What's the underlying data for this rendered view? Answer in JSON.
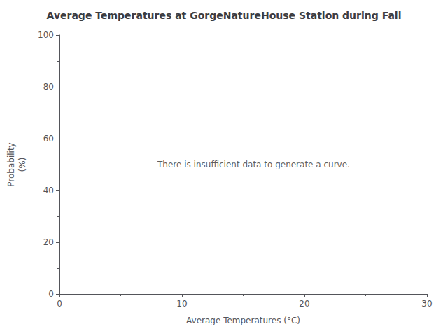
{
  "chart_data": {
    "type": "line",
    "title": "Average Temperatures at GorgeNatureHouse Station during Fall",
    "xlabel": "Average Temperatures (°C)",
    "ylabel": "Probability\n(%)",
    "xlim": [
      0,
      30
    ],
    "ylim": [
      0,
      100
    ],
    "xticks": [
      0,
      10,
      20,
      30
    ],
    "yticks": [
      0,
      20,
      40,
      60,
      80,
      100
    ],
    "grid": false,
    "annotations": [
      {
        "text": "There is insufficient data to generate a curve.",
        "x": 8,
        "y": 50
      }
    ]
  }
}
